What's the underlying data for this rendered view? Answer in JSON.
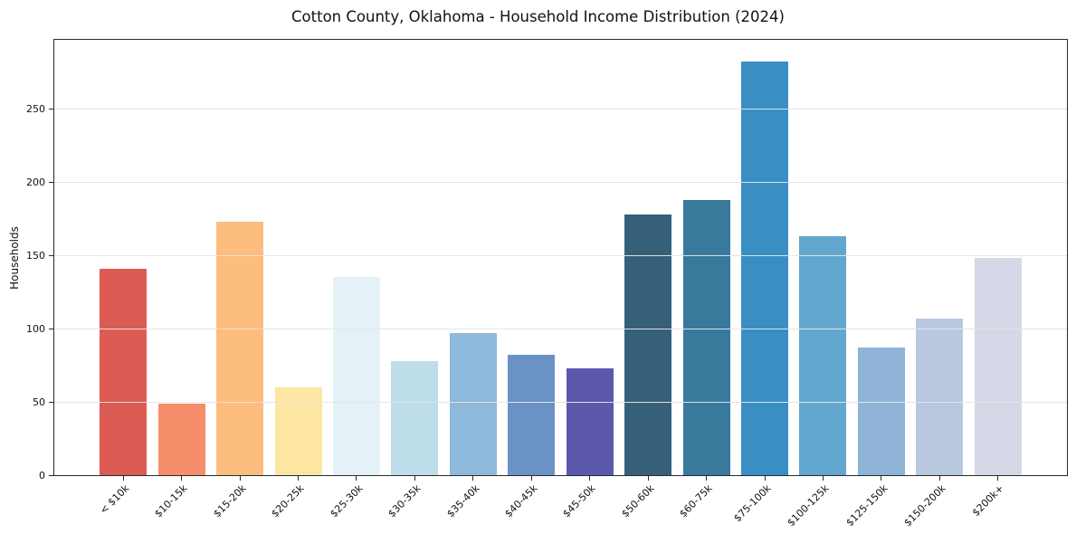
{
  "chart_data": {
    "type": "bar",
    "title": "Cotton County, Oklahoma - Household Income Distribution (2024)",
    "xlabel": "",
    "ylabel": "Households",
    "categories": [
      "< $10k",
      "$10-15k",
      "$15-20k",
      "$20-25k",
      "$25-30k",
      "$30-35k",
      "$35-40k",
      "$40-45k",
      "$45-50k",
      "$50-60k",
      "$60-75k",
      "$75-100k",
      "$100-125k",
      "$125-150k",
      "$150-200k",
      "$200k+"
    ],
    "values": [
      141,
      49,
      173,
      60,
      135,
      78,
      97,
      82,
      73,
      178,
      188,
      282,
      163,
      87,
      107,
      148
    ],
    "bar_colors": [
      "#dc5b54",
      "#f68d6b",
      "#fcbd7e",
      "#fde6a2",
      "#e4f1f7",
      "#bcdde9",
      "#8fb9da",
      "#6a92c5",
      "#5c59ac",
      "#36607a",
      "#38799c",
      "#398ec4",
      "#62a7cd",
      "#8eb3d7",
      "#b7c8df",
      "#d5d8e6"
    ],
    "yticks": [
      0,
      50,
      100,
      150,
      200,
      250
    ],
    "ylim": [
      0,
      297
    ],
    "grid": "horizontal",
    "grid_color": "#e5e5e5",
    "grid_over_bars": true,
    "legend_position": "none",
    "background_color": "#ffffff",
    "axis_color": "#2b2b2b"
  }
}
